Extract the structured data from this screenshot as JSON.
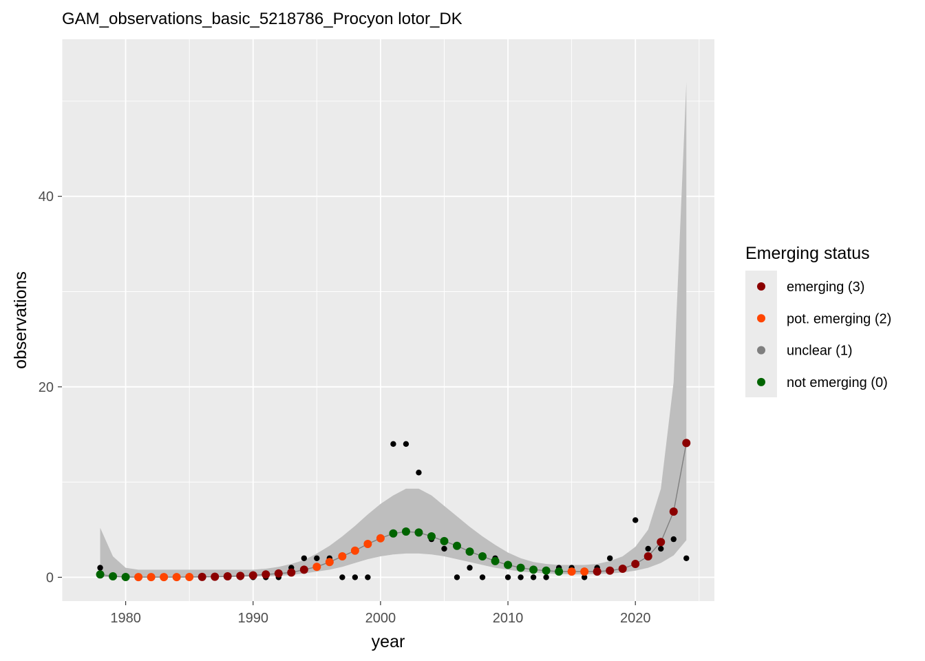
{
  "chart_data": {
    "type": "scatter",
    "title": "GAM_observations_basic_5218786_Procyon lotor_DK",
    "xlabel": "year",
    "ylabel": "observations",
    "xlim": [
      1975.0,
      2026.2
    ],
    "ylim": [
      -2.5,
      56.5
    ],
    "x_ticks": [
      1980,
      1990,
      2000,
      2010,
      2020
    ],
    "x_tick_labels": [
      "1980",
      "1990",
      "2000",
      "2010",
      "2020"
    ],
    "y_ticks": [
      0,
      20,
      40
    ],
    "y_tick_labels": [
      "0",
      "20",
      "40"
    ],
    "grid": true,
    "panel_background": "#ebebeb",
    "legend": {
      "title": "Emerging status",
      "position": "right",
      "items": [
        {
          "label": "emerging (3)",
          "color": "#8b0000"
        },
        {
          "label": "pot. emerging (2)",
          "color": "#ff4500"
        },
        {
          "label": "unclear (1)",
          "color": "#7f7f7f"
        },
        {
          "label": "not emerging (0)",
          "color": "#006400"
        }
      ]
    },
    "observed": {
      "name": "observations",
      "color": "#000000",
      "points": [
        [
          1978,
          1
        ],
        [
          1979,
          0
        ],
        [
          1980,
          0
        ],
        [
          1981,
          0
        ],
        [
          1982,
          0
        ],
        [
          1983,
          0
        ],
        [
          1984,
          0
        ],
        [
          1985,
          0
        ],
        [
          1986,
          0
        ],
        [
          1987,
          0
        ],
        [
          1988,
          0
        ],
        [
          1989,
          0
        ],
        [
          1990,
          0
        ],
        [
          1991,
          0
        ],
        [
          1992,
          0
        ],
        [
          1993,
          1
        ],
        [
          1994,
          2
        ],
        [
          1995,
          2
        ],
        [
          1996,
          2
        ],
        [
          1997,
          0
        ],
        [
          1998,
          0
        ],
        [
          1999,
          0
        ],
        [
          2001,
          14
        ],
        [
          2002,
          14
        ],
        [
          2003,
          11
        ],
        [
          2004,
          4
        ],
        [
          2005,
          3
        ],
        [
          2006,
          0
        ],
        [
          2007,
          1
        ],
        [
          2008,
          0
        ],
        [
          2009,
          2
        ],
        [
          2010,
          0
        ],
        [
          2011,
          0
        ],
        [
          2012,
          0
        ],
        [
          2013,
          0
        ],
        [
          2014,
          1
        ],
        [
          2015,
          1
        ],
        [
          2016,
          0
        ],
        [
          2017,
          1
        ],
        [
          2018,
          2
        ],
        [
          2019,
          1
        ],
        [
          2020,
          6
        ],
        [
          2021,
          3
        ],
        [
          2022,
          3
        ],
        [
          2023,
          4
        ],
        [
          2024,
          2
        ]
      ]
    },
    "fitted": {
      "x": [
        1978,
        1979,
        1980,
        1981,
        1982,
        1983,
        1984,
        1985,
        1986,
        1987,
        1988,
        1989,
        1990,
        1991,
        1992,
        1993,
        1994,
        1995,
        1996,
        1997,
        1998,
        1999,
        2000,
        2001,
        2002,
        2003,
        2004,
        2005,
        2006,
        2007,
        2008,
        2009,
        2010,
        2011,
        2012,
        2013,
        2014,
        2015,
        2016,
        2017,
        2018,
        2019,
        2020,
        2021,
        2022,
        2023,
        2024
      ],
      "y": [
        0.3,
        0.1,
        0.03,
        0.02,
        0.02,
        0.02,
        0.02,
        0.03,
        0.04,
        0.06,
        0.1,
        0.15,
        0.2,
        0.3,
        0.4,
        0.5,
        0.8,
        1.1,
        1.6,
        2.2,
        2.8,
        3.5,
        4.1,
        4.6,
        4.8,
        4.7,
        4.3,
        3.8,
        3.3,
        2.7,
        2.2,
        1.7,
        1.3,
        1.0,
        0.8,
        0.7,
        0.6,
        0.6,
        0.6,
        0.6,
        0.7,
        0.9,
        1.4,
        2.2,
        3.7,
        6.9,
        14.1
      ],
      "lower": [
        0.02,
        0.01,
        0.0,
        0.0,
        0.0,
        0.0,
        0.0,
        0.0,
        0.0,
        0.0,
        0.0,
        0.05,
        0.08,
        0.1,
        0.15,
        0.25,
        0.4,
        0.6,
        0.8,
        1.1,
        1.5,
        1.9,
        2.2,
        2.4,
        2.5,
        2.5,
        2.4,
        2.2,
        1.9,
        1.6,
        1.3,
        1.0,
        0.8,
        0.6,
        0.5,
        0.4,
        0.35,
        0.3,
        0.3,
        0.35,
        0.4,
        0.5,
        0.7,
        1.0,
        1.5,
        2.3,
        3.9
      ],
      "upper": [
        5.2,
        2.2,
        1.0,
        0.8,
        0.8,
        0.8,
        0.8,
        0.8,
        0.8,
        0.8,
        0.8,
        0.8,
        0.8,
        0.9,
        1.1,
        1.4,
        1.8,
        2.5,
        3.3,
        4.3,
        5.4,
        6.6,
        7.7,
        8.6,
        9.3,
        9.3,
        8.6,
        7.5,
        6.4,
        5.3,
        4.3,
        3.4,
        2.6,
        2.0,
        1.6,
        1.4,
        1.3,
        1.3,
        1.3,
        1.4,
        1.7,
        2.2,
        3.2,
        5.0,
        9.3,
        20.5,
        52.0
      ],
      "status": [
        0,
        0,
        0,
        2,
        2,
        2,
        2,
        2,
        3,
        3,
        3,
        3,
        3,
        3,
        3,
        3,
        3,
        2,
        2,
        2,
        2,
        2,
        2,
        0,
        0,
        0,
        0,
        0,
        0,
        0,
        0,
        0,
        0,
        0,
        0,
        0,
        0,
        2,
        2,
        3,
        3,
        3,
        3,
        3,
        3,
        3,
        3
      ],
      "line_color": "#7f7f7f",
      "ribbon_color": "#bebebe"
    }
  }
}
